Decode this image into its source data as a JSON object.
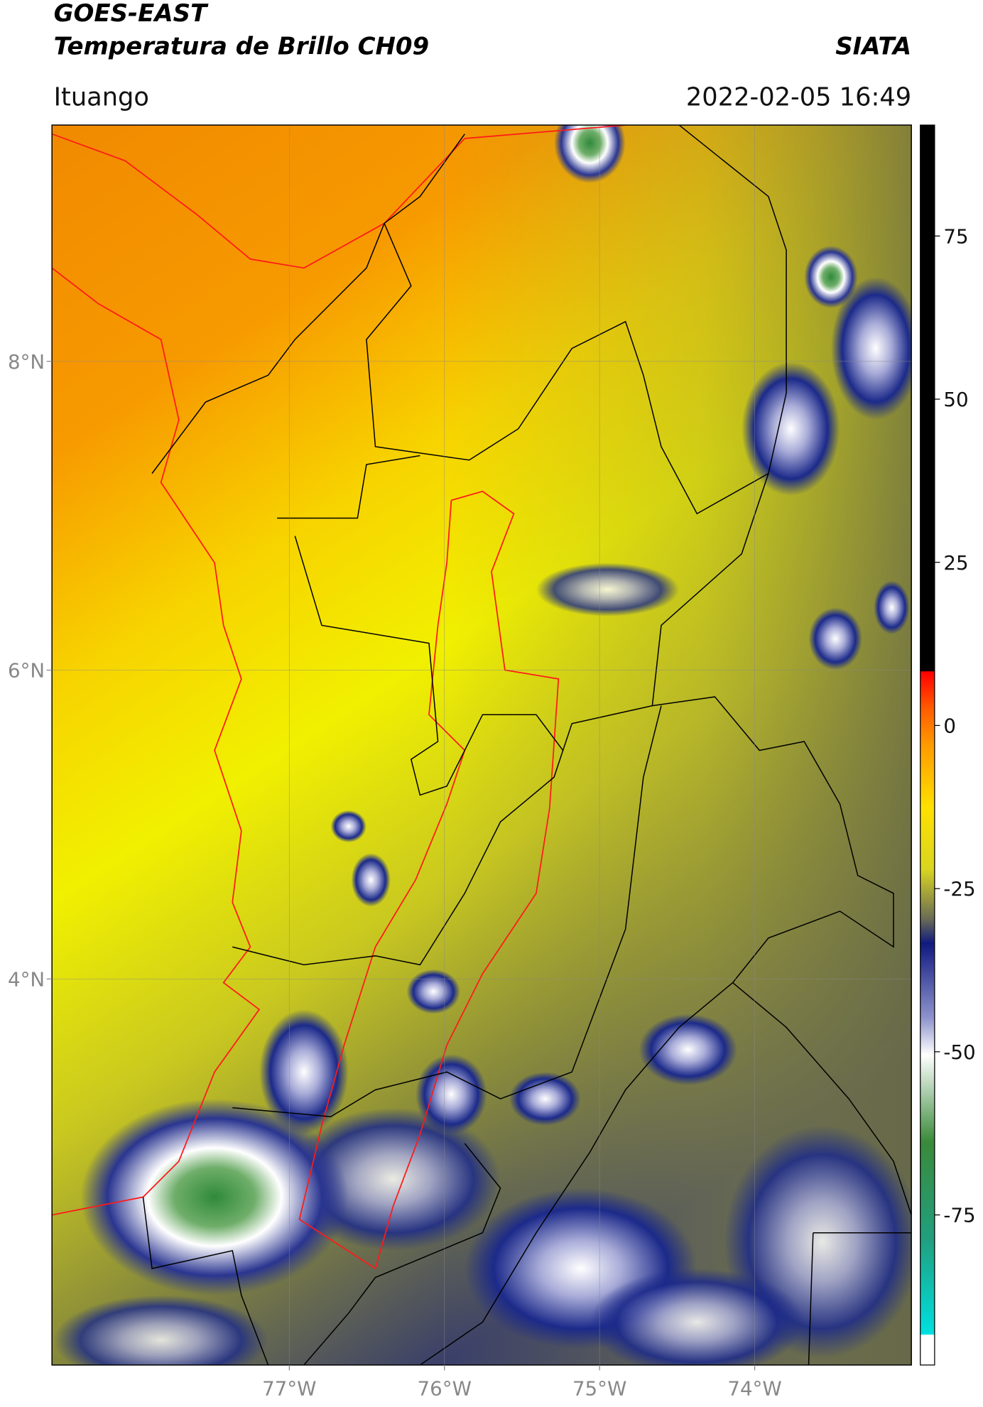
{
  "header": {
    "title": "GOES-EAST",
    "subtitle": "Temperatura de Brillo CH09",
    "source": "SIATA",
    "region": "Ituango",
    "datetime": "2022-02-05 16:49"
  },
  "map": {
    "xlim": [
      -78.53,
      -72.99
    ],
    "ylim": [
      1.5,
      9.53
    ],
    "xticks": [
      {
        "value": -77,
        "label": "77°W"
      },
      {
        "value": -76,
        "label": "76°W"
      },
      {
        "value": -75,
        "label": "75°W"
      },
      {
        "value": -74,
        "label": "74°W"
      }
    ],
    "yticks": [
      {
        "value": 8,
        "label": "8°N"
      },
      {
        "value": 6,
        "label": "6°N"
      },
      {
        "value": 4,
        "label": "4°N"
      }
    ]
  },
  "colorbar": {
    "lim": [
      -98,
      92
    ],
    "ticks": [
      75,
      50,
      25,
      0,
      -25,
      -50,
      -75
    ]
  }
}
